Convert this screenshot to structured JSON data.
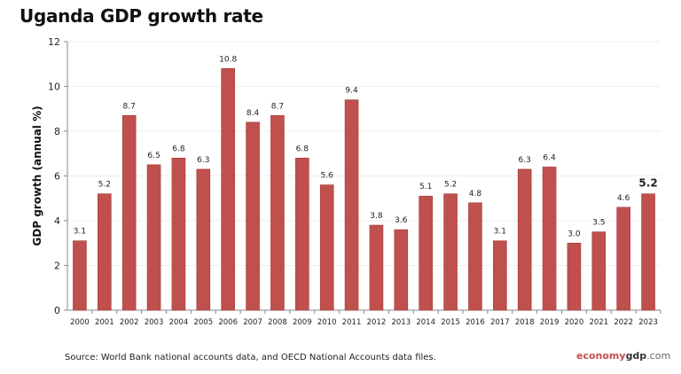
{
  "chart_data": {
    "type": "bar",
    "title": "Uganda GDP growth rate",
    "xlabel": "",
    "ylabel": "GDP growth (annual %)",
    "ylim": [
      0,
      12
    ],
    "yticks": [
      0,
      2,
      4,
      6,
      8,
      10,
      12
    ],
    "grid": true,
    "bar_color": "#c0504d",
    "categories": [
      "2000",
      "2001",
      "2002",
      "2003",
      "2004",
      "2005",
      "2006",
      "2007",
      "2008",
      "2009",
      "2010",
      "2011",
      "2012",
      "2013",
      "2014",
      "2015",
      "2016",
      "2017",
      "2018",
      "2019",
      "2020",
      "2021",
      "2022",
      "2023"
    ],
    "values": [
      3.1,
      5.2,
      8.7,
      6.5,
      6.8,
      6.3,
      10.8,
      8.4,
      8.7,
      6.8,
      5.6,
      9.4,
      3.8,
      3.6,
      5.1,
      5.2,
      4.8,
      3.1,
      6.3,
      6.4,
      3.0,
      3.5,
      4.6,
      5.2
    ],
    "labels": [
      "3.1",
      "5.2",
      "8.7",
      "6.5",
      "6.8",
      "6.3",
      "10.8",
      "8.4",
      "8.7",
      "6.8",
      "5.6",
      "9.4",
      "3.8",
      "3.6",
      "5.1",
      "5.2",
      "4.8",
      "3.1",
      "6.3",
      "6.4",
      "3.0",
      "3.5",
      "4.6",
      "5.2"
    ],
    "highlight_last": true
  },
  "footer": {
    "source": "Source:  World Bank national accounts data, and OECD National Accounts data files.",
    "logo_part1": "economy",
    "logo_part2": "gdp",
    "logo_part3": ".com"
  }
}
